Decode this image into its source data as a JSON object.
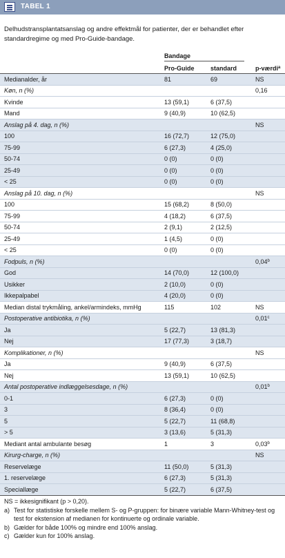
{
  "header": {
    "title": "TABEL 1"
  },
  "caption": "Delhudstransplantatsanslag og andre effektmål for patienter, der er behandlet efter standardregime og med Pro-Guide-bandage.",
  "columns": {
    "group": "Bandage",
    "pro": "Pro-Guide",
    "std": "standard",
    "p": "p-værdi",
    "p_note": "a"
  },
  "sections": [
    {
      "rows": [
        {
          "label": "Medianalder, år",
          "pro": "81",
          "std": "69",
          "p": "NS"
        }
      ]
    },
    {
      "title": {
        "label": "Køn, n (%)",
        "p": "0,16"
      },
      "rows": [
        {
          "label": "Kvinde",
          "pro": "13 (59,1)",
          "std": "6 (37,5)"
        },
        {
          "label": "Mand",
          "pro": "9 (40,9)",
          "std": "10 (62,5)"
        }
      ]
    },
    {
      "title": {
        "label": "Anslag på 4. dag, n (%)",
        "p": "NS"
      },
      "rows": [
        {
          "label": "100",
          "pro": "16 (72,7)",
          "std": "12 (75,0)"
        },
        {
          "label": "75-99",
          "pro": "6 (27,3)",
          "std": "4 (25,0)"
        },
        {
          "label": "50-74",
          "pro": "0 (0)",
          "std": "0 (0)"
        },
        {
          "label": "25-49",
          "pro": "0 (0)",
          "std": "0 (0)"
        },
        {
          "label": "< 25",
          "pro": "0 (0)",
          "std": "0 (0)"
        }
      ]
    },
    {
      "title": {
        "label": "Anslag på 10. dag, n (%)",
        "p": "NS"
      },
      "rows": [
        {
          "label": "100",
          "pro": "15 (68,2)",
          "std": "8 (50,0)"
        },
        {
          "label": "75-99",
          "pro": "4 (18,2)",
          "std": "6 (37,5)"
        },
        {
          "label": "50-74",
          "pro": "2 (9,1)",
          "std": "2 (12,5)"
        },
        {
          "label": "25-49",
          "pro": "1 (4,5)",
          "std": "0 (0)"
        },
        {
          "label": "< 25",
          "pro": "0 (0)",
          "std": "0 (0)"
        }
      ]
    },
    {
      "title": {
        "label": "Fodpuls, n (%)",
        "p": "0,04",
        "p_note": "b"
      },
      "rows": [
        {
          "label": "God",
          "pro": "14 (70,0)",
          "std": "12 (100,0)"
        },
        {
          "label": "Usikker",
          "pro": "2 (10,0)",
          "std": "0 (0)"
        },
        {
          "label": "Ikkepalpabel",
          "pro": "4 (20,0)",
          "std": "0 (0)"
        }
      ]
    },
    {
      "rows": [
        {
          "label": "Median distal trykmåling, ankel/armindeks, mmHg",
          "pro": "115",
          "std": "102",
          "p": "NS"
        }
      ]
    },
    {
      "title": {
        "label": "Postoperative antibiotika, n (%)",
        "p": "0,01",
        "p_note": "c"
      },
      "rows": [
        {
          "label": "Ja",
          "pro": "5 (22,7)",
          "std": "13 (81,3)"
        },
        {
          "label": "Nej",
          "pro": "17 (77,3)",
          "std": "3 (18,7)"
        }
      ]
    },
    {
      "title": {
        "label": "Komplikationer, n (%)",
        "p": "NS"
      },
      "rows": [
        {
          "label": "Ja",
          "pro": "9 (40,9)",
          "std": "6 (37,5)"
        },
        {
          "label": "Nej",
          "pro": "13 (59,1)",
          "std": "10 (62,5)"
        }
      ]
    },
    {
      "title": {
        "label": "Antal postoperative indlæggelsesdage, n (%)",
        "p": "0,01",
        "p_note": "b"
      },
      "rows": [
        {
          "label": "0-1",
          "pro": "6 (27,3)",
          "std": "0 (0)"
        },
        {
          "label": "3",
          "pro": "8 (36,4)",
          "std": "0 (0)"
        },
        {
          "label": "5",
          "pro": "5 (22,7)",
          "std": "11 (68,8)"
        },
        {
          "label": "> 5",
          "pro": "3 (13,6)",
          "std": "5 (31,3)"
        }
      ]
    },
    {
      "rows": [
        {
          "label": "Mediant antal ambulante besøg",
          "pro": "1",
          "std": "3",
          "p": "0,03",
          "p_note": "b"
        }
      ]
    },
    {
      "title": {
        "label": "Kirurg-charge, n (%)",
        "p": "NS"
      },
      "rows": [
        {
          "label": "Reservelæge",
          "pro": "11 (50,0)",
          "std": "5 (31,3)"
        },
        {
          "label": "1. reservelæge",
          "pro": "6 (27,3)",
          "std": "5 (31,3)"
        },
        {
          "label": "Speciallæge",
          "pro": "5 (22,7)",
          "std": "6 (37,5)"
        }
      ]
    }
  ],
  "footnotes": {
    "ns": "NS = ikkesignifikant (p > 0,20).",
    "items": [
      {
        "mark": "a)",
        "text": "Test for statistiske forskelle mellem S- og P-gruppen: for binære variable Mann-Whitney-test og test for ekstension af medianen for kontinuerte og ordinale variable."
      },
      {
        "mark": "b)",
        "text": "Gælder for både 100% og mindre end 100% anslag."
      },
      {
        "mark": "c)",
        "text": "Gælder kun for 100% anslag."
      }
    ]
  }
}
